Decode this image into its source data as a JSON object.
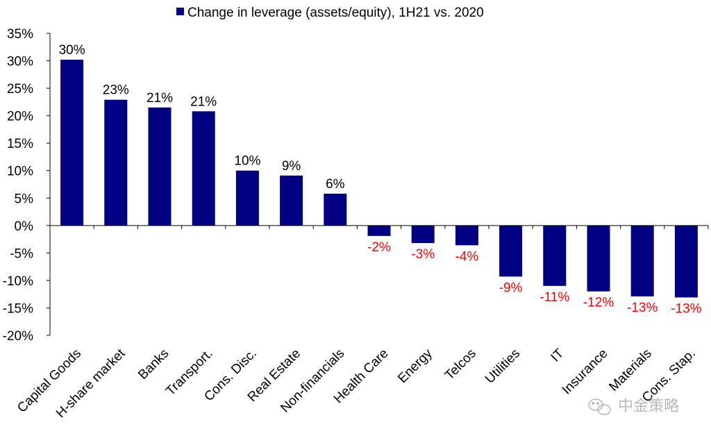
{
  "chart_data": {
    "type": "bar",
    "title": "",
    "xlabel": "",
    "ylabel": "",
    "legend": {
      "position": "top-center",
      "entries": [
        "Change in leverage (assets/equity), 1H21 vs. 2020"
      ]
    },
    "series": [
      {
        "name": "Change in leverage (assets/equity), 1H21 vs. 2020",
        "color": "#000080",
        "values": [
          30,
          23,
          21,
          21,
          10,
          9,
          6,
          -2,
          -3,
          -4,
          -9,
          -11,
          -12,
          -13,
          -13
        ],
        "precise_values": [
          30.2,
          22.9,
          21.5,
          20.8,
          10.0,
          9.1,
          5.8,
          -1.9,
          -3.2,
          -3.6,
          -9.3,
          -11.0,
          -12.0,
          -12.9,
          -13.1
        ]
      }
    ],
    "categories": [
      "Capital Goods",
      "H-share market",
      "Banks",
      "Transport.",
      "Cons. Disc.",
      "Real Estate",
      "Non-financials",
      "Health Care",
      "Energy",
      "Telcos",
      "Utilities",
      "IT",
      "Insurance",
      "Materials",
      "Cons. Stap."
    ],
    "data_labels": [
      "30%",
      "23%",
      "21%",
      "21%",
      "10%",
      "9%",
      "6%",
      "-2%",
      "-3%",
      "-4%",
      "-9%",
      "-11%",
      "-12%",
      "-13%",
      "-13%"
    ],
    "label_colors": {
      "positive": "#000000",
      "negative": "#ff0000"
    },
    "ylim": [
      -20,
      35
    ],
    "yticks": [
      35,
      30,
      25,
      20,
      15,
      10,
      5,
      0,
      -5,
      -10,
      -15,
      -20
    ],
    "ytick_labels": [
      "35%",
      "30%",
      "25%",
      "20%",
      "15%",
      "10%",
      "5%",
      "0%",
      "-5%",
      "-10%",
      "-15%",
      "-20%"
    ],
    "grid": false
  },
  "watermark": {
    "text": "中金策略",
    "icon": "wechat-icon"
  }
}
